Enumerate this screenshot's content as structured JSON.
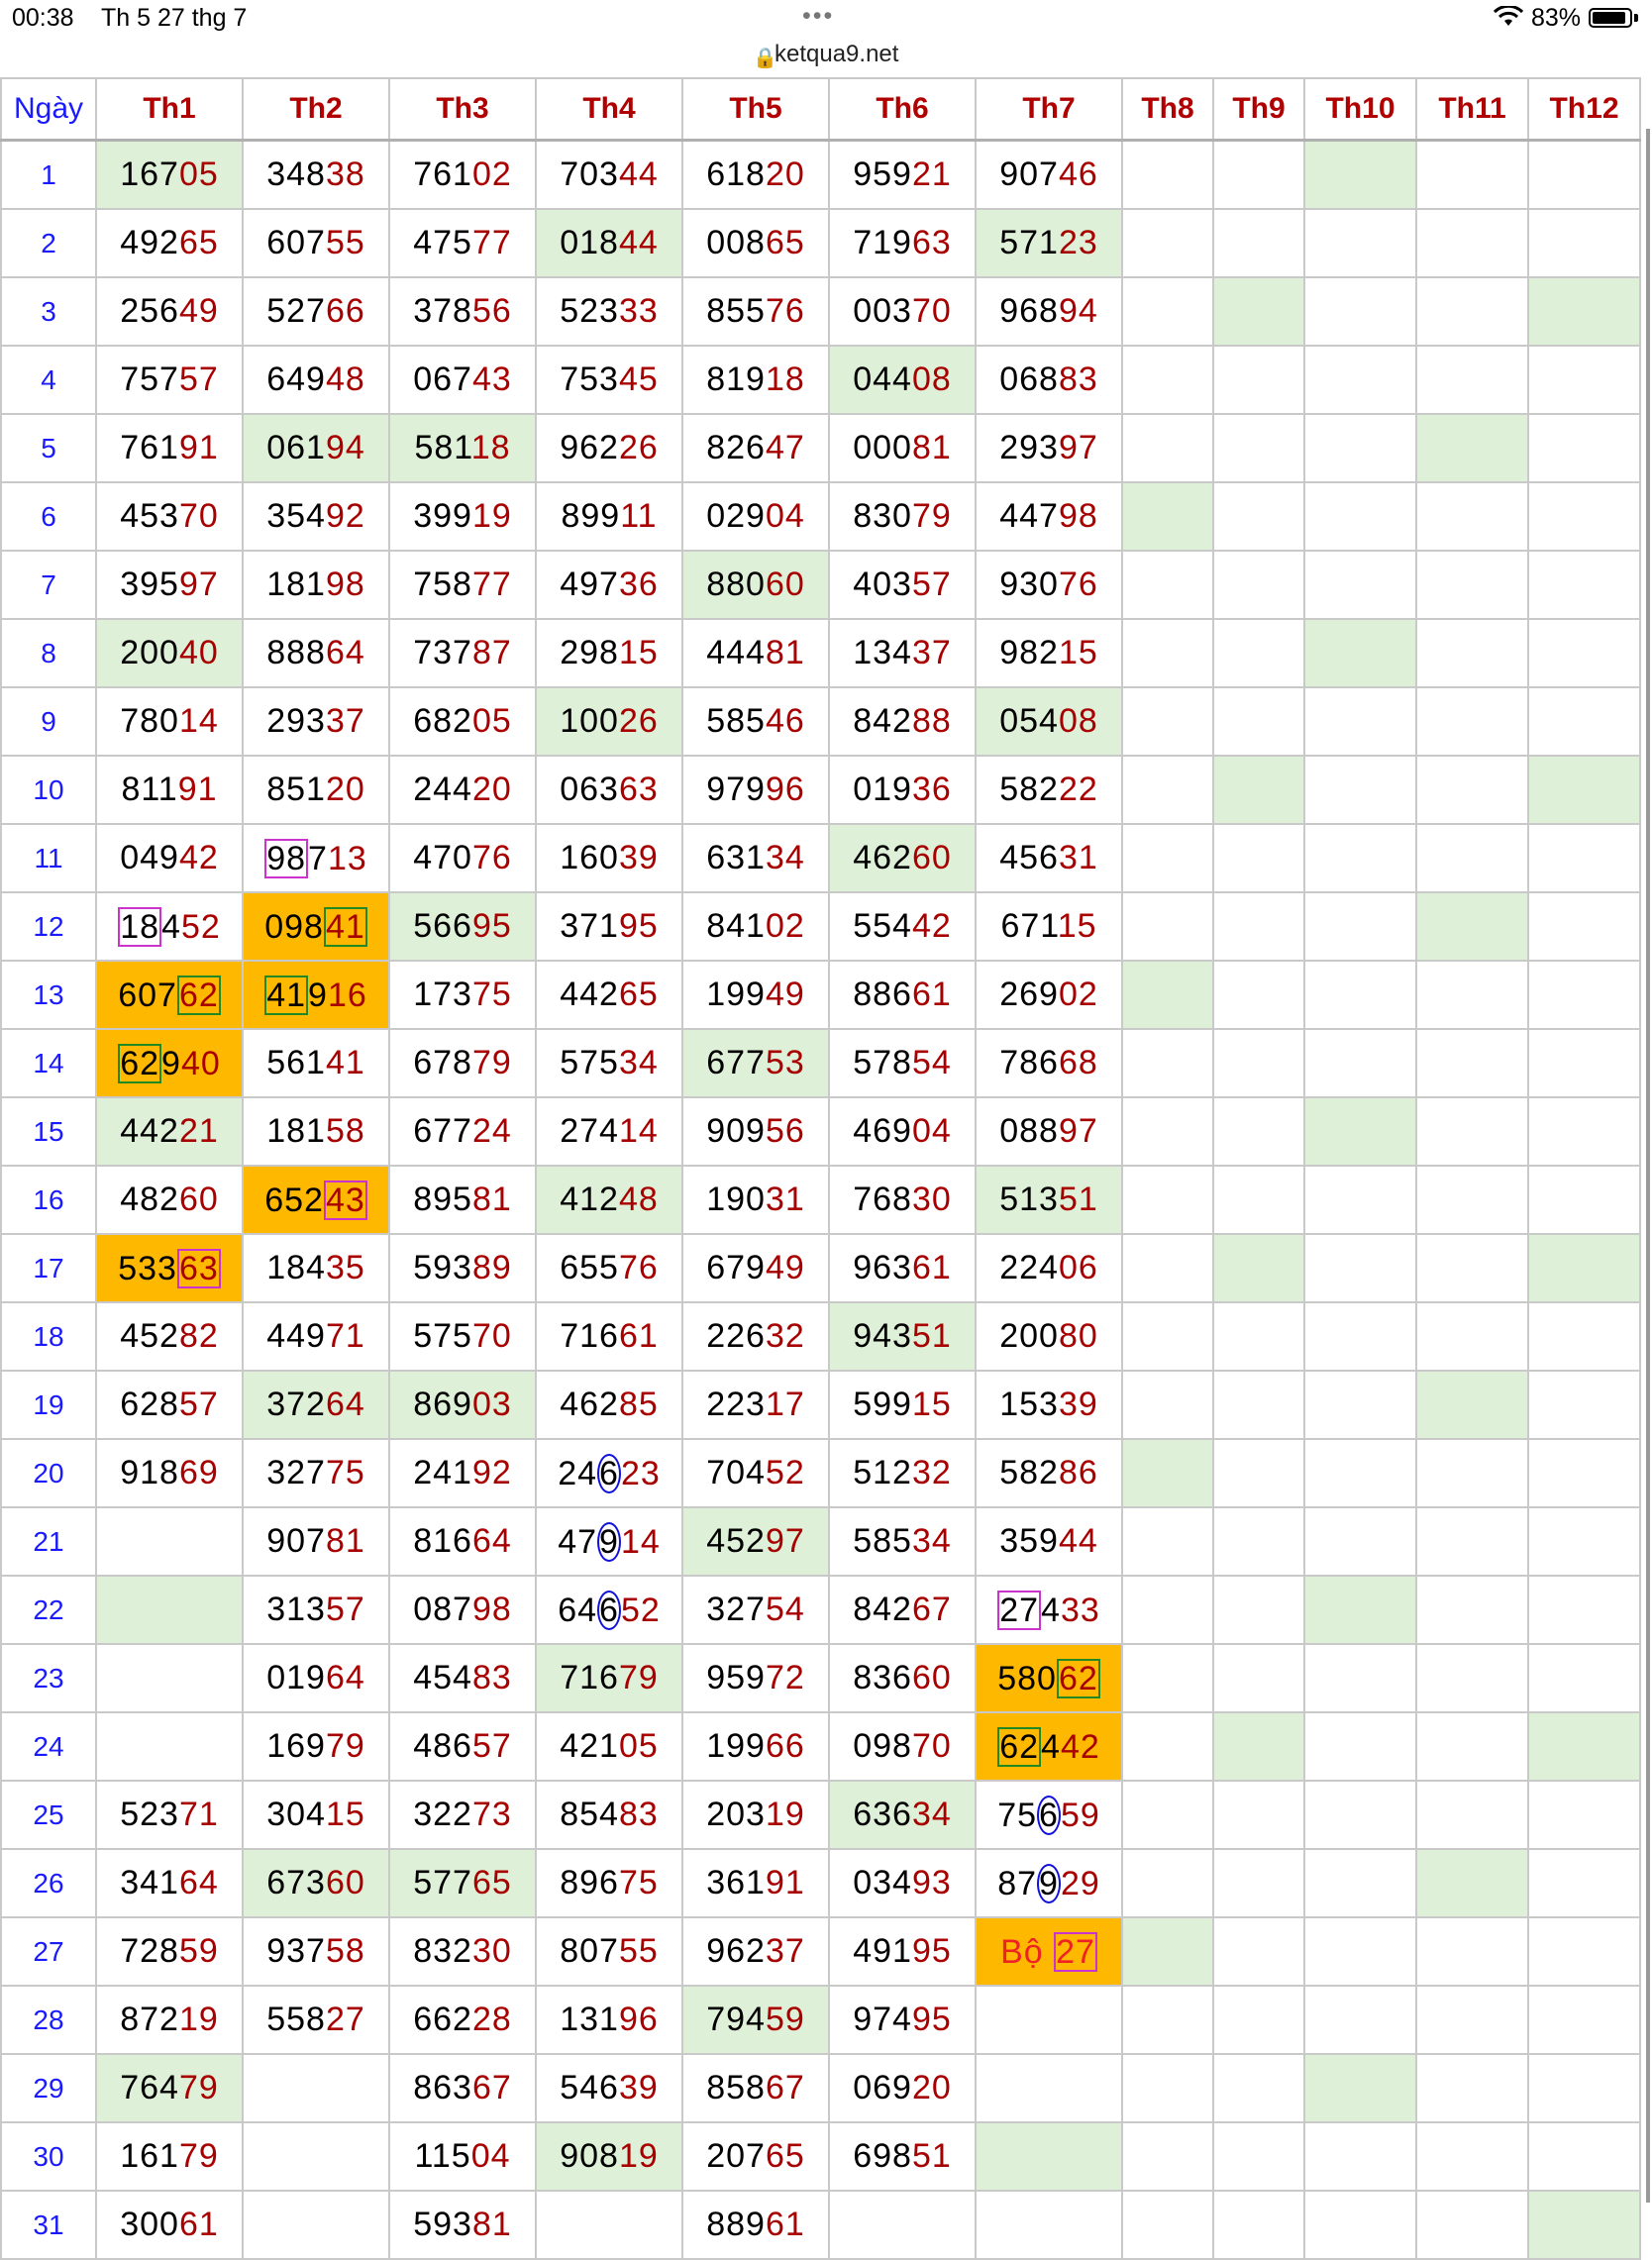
{
  "status_bar": {
    "time": "00:38",
    "date": "Th 5 27 thg 7",
    "dots": "•••",
    "battery": "83%"
  },
  "browser": {
    "url": "ketqua9.net"
  },
  "table": {
    "day_header": "Ngày",
    "month_headers": [
      "Th1",
      "Th2",
      "Th3",
      "Th4",
      "Th5",
      "Th6",
      "Th7",
      "Th8",
      "Th9",
      "Th10",
      "Th11",
      "Th12"
    ],
    "days": [
      "1",
      "2",
      "3",
      "4",
      "5",
      "6",
      "7",
      "8",
      "9",
      "10",
      "11",
      "12",
      "13",
      "14",
      "15",
      "16",
      "17",
      "18",
      "19",
      "20",
      "21",
      "22",
      "23",
      "24",
      "25",
      "26",
      "27",
      "28",
      "29",
      "30",
      "31"
    ],
    "months": [
      [
        "16705",
        "49265",
        "25649",
        "75757",
        "76191",
        "45370",
        "39597",
        "20040",
        "78014",
        "81191",
        "04942",
        "18452",
        "60762",
        "62940",
        "44221",
        "48260",
        "53363",
        "45282",
        "62857",
        "91869",
        "",
        "",
        "",
        "",
        "52371",
        "34164",
        "72859",
        "87219",
        "76479",
        "16179",
        "30061"
      ],
      [
        "34838",
        "60755",
        "52766",
        "64948",
        "06194",
        "35492",
        "18198",
        "88864",
        "29337",
        "85120",
        "98713",
        "09841",
        "41916",
        "56141",
        "18158",
        "65243",
        "18435",
        "44971",
        "37264",
        "32775",
        "90781",
        "31357",
        "01964",
        "16979",
        "30415",
        "67360",
        "93758",
        "55827",
        "",
        "",
        ""
      ],
      [
        "76102",
        "47577",
        "37856",
        "06743",
        "58118",
        "39919",
        "75877",
        "73787",
        "68205",
        "24420",
        "47076",
        "56695",
        "17375",
        "67879",
        "67724",
        "89581",
        "59389",
        "57570",
        "86903",
        "24192",
        "81664",
        "08798",
        "45483",
        "48657",
        "32273",
        "57765",
        "83230",
        "66228",
        "86367",
        "11504",
        "59381"
      ],
      [
        "70344",
        "01844",
        "52333",
        "75345",
        "96226",
        "89911",
        "49736",
        "29815",
        "10026",
        "06363",
        "16039",
        "37195",
        "44265",
        "57534",
        "27414",
        "41248",
        "65576",
        "71661",
        "46285",
        "24623",
        "47914",
        "64652",
        "71679",
        "42105",
        "85483",
        "89675",
        "80755",
        "13196",
        "54639",
        "90819",
        ""
      ],
      [
        "61820",
        "00865",
        "85576",
        "81918",
        "82647",
        "02904",
        "88060",
        "44481",
        "58546",
        "97996",
        "63134",
        "84102",
        "19949",
        "67753",
        "90956",
        "19031",
        "67949",
        "22632",
        "22317",
        "70452",
        "45297",
        "32754",
        "95972",
        "19966",
        "20319",
        "36191",
        "96237",
        "79459",
        "85867",
        "20765",
        "88961"
      ],
      [
        "95921",
        "71963",
        "00370",
        "04408",
        "00081",
        "83079",
        "40357",
        "13437",
        "84288",
        "01936",
        "46260",
        "55442",
        "88661",
        "57854",
        "46904",
        "76830",
        "96361",
        "94351",
        "59915",
        "51232",
        "58534",
        "84267",
        "83660",
        "09870",
        "63634",
        "03493",
        "49195",
        "97495",
        "06920",
        "69851",
        ""
      ],
      [
        "90746",
        "57123",
        "96894",
        "06883",
        "29397",
        "44798",
        "93076",
        "98215",
        "05408",
        "58222",
        "45631",
        "67115",
        "26902",
        "78668",
        "08897",
        "51351",
        "22406",
        "20080",
        "15339",
        "58286",
        "35944",
        "27433",
        "58062",
        "62442",
        "75659",
        "87929",
        "Bộ 27",
        "",
        "",
        "",
        ""
      ]
    ],
    "colors": {
      "green": "#dff0d8",
      "orange": "#ffb800",
      "month_header": "#b00000",
      "day_text": "#1a1aff",
      "tail_digits": "#a80000",
      "pink_box": "#cc33cc",
      "green_box": "#228822",
      "blue_circle": "#1111dd"
    }
  }
}
